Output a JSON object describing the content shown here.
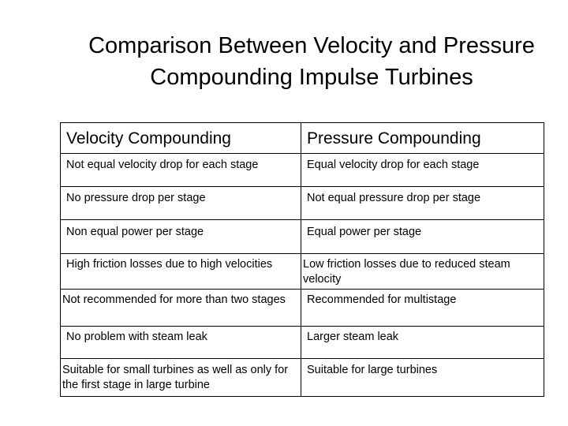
{
  "title": {
    "line1": "Comparison Between Velocity and Pressure",
    "line2": "Compounding Impulse Turbines"
  },
  "table": {
    "headers": [
      "Velocity Compounding",
      "Pressure Compounding"
    ],
    "rows": [
      [
        "Not equal velocity drop for each stage",
        "Equal velocity drop for each stage"
      ],
      [
        "No pressure drop per stage",
        "Not equal pressure drop per stage"
      ],
      [
        "Non equal power per stage",
        "Equal power per stage"
      ],
      [
        "High friction losses due to high velocities",
        "Low friction losses due to reduced steam velocity"
      ],
      [
        "Not recommended for more than two stages",
        "Recommended for multistage"
      ],
      [
        "No problem with steam leak",
        "Larger steam leak"
      ],
      [
        "Suitable for small turbines as well as only for the first stage in large turbine",
        "Suitable for large turbines"
      ]
    ]
  }
}
